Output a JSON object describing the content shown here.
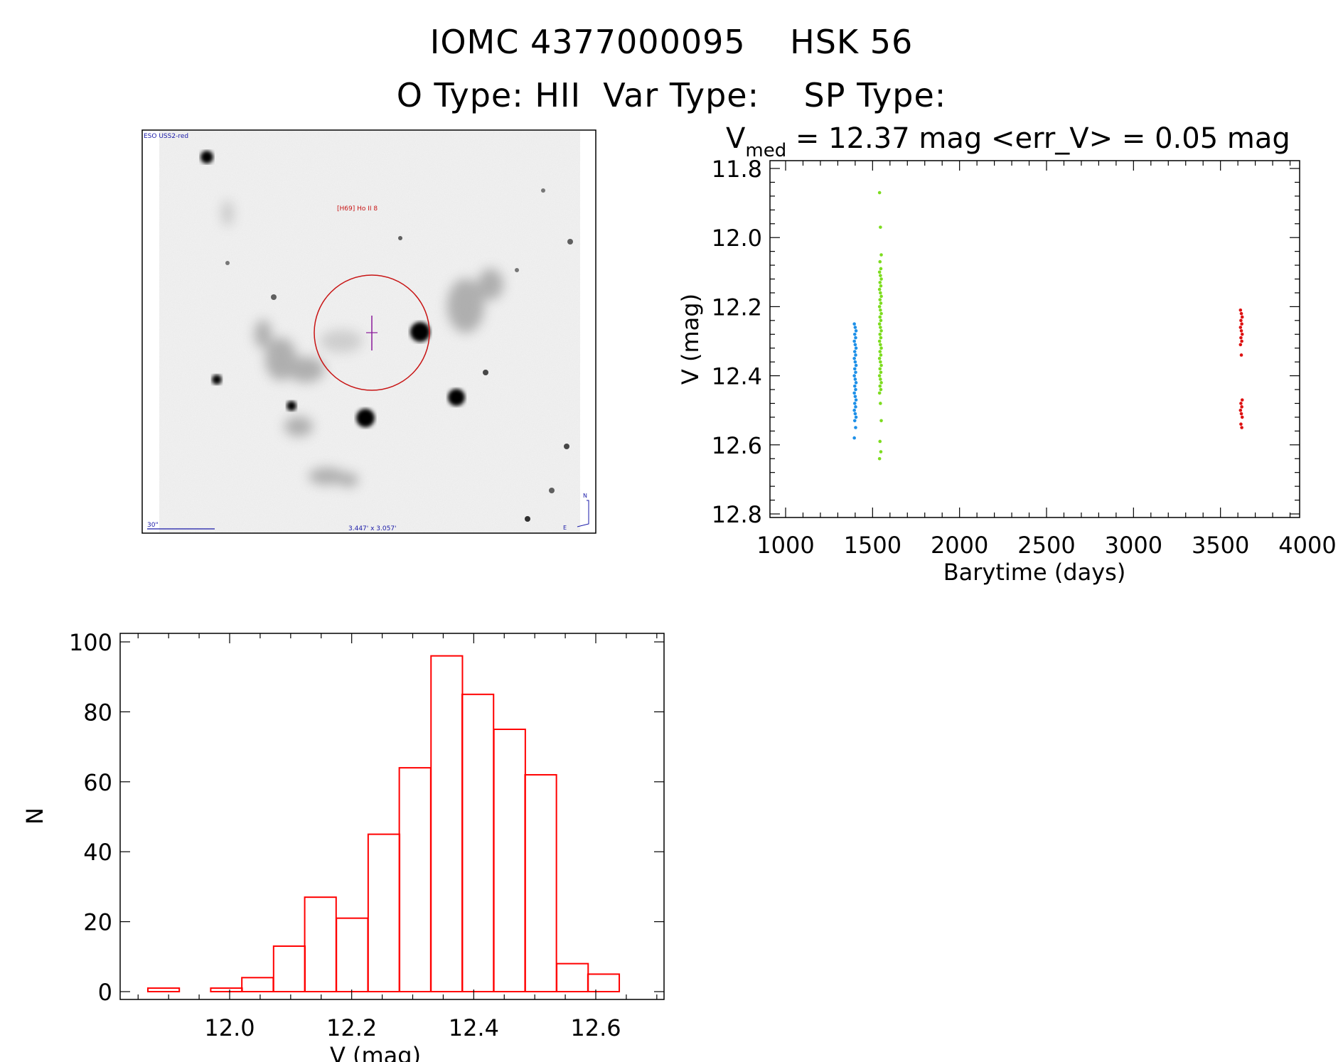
{
  "header": {
    "line1": "IOMC 4377000095    HSK 56",
    "line2": "O Type: HII  Var Type:    SP Type:"
  },
  "finder": {
    "survey_label": "ESO USS2-red",
    "object_label": "[H69] Ho II 8",
    "scale_label": "30\"",
    "size_label": "3.447' x 3.057'",
    "compass_north": "N",
    "compass_east": "E"
  },
  "chart_data": [
    {
      "type": "scatter",
      "title_prefix": "V",
      "title_subscript": "med",
      "title_rest": " = 12.37 mag <err_V> = 0.05 mag",
      "xlabel": "Barytime (days)",
      "ylabel": "V (mag)",
      "xlim": [
        1000,
        4000
      ],
      "ylim": [
        12.8,
        11.8
      ],
      "y_inverted": true,
      "xticks": [
        1000,
        1500,
        2000,
        2500,
        3000,
        3500,
        4000
      ],
      "yticks": [
        11.8,
        12.0,
        12.2,
        12.4,
        12.6,
        12.8
      ],
      "xtick_labels": [
        "1000",
        "1500",
        "2000",
        "2500",
        "3000",
        "3500",
        "4000"
      ],
      "ytick_labels": [
        "11.8",
        "12.0",
        "12.2",
        "12.4",
        "12.6",
        "12.8"
      ],
      "grid": false,
      "series": [
        {
          "color": "#1e90e8",
          "x": 1400,
          "y_range": [
            12.25,
            12.58
          ],
          "y": [
            12.25,
            12.26,
            12.27,
            12.28,
            12.29,
            12.3,
            12.31,
            12.32,
            12.33,
            12.34,
            12.35,
            12.36,
            12.37,
            12.38,
            12.39,
            12.4,
            12.41,
            12.42,
            12.43,
            12.44,
            12.45,
            12.46,
            12.47,
            12.48,
            12.49,
            12.5,
            12.51,
            12.52,
            12.53,
            12.55,
            12.58
          ]
        },
        {
          "color": "#7ddc1f",
          "x": 1545,
          "y_range": [
            11.87,
            12.64
          ],
          "y": [
            11.87,
            11.97,
            12.05,
            12.07,
            12.09,
            12.1,
            12.11,
            12.12,
            12.13,
            12.14,
            12.15,
            12.16,
            12.17,
            12.18,
            12.19,
            12.2,
            12.21,
            12.22,
            12.23,
            12.24,
            12.25,
            12.26,
            12.27,
            12.28,
            12.29,
            12.3,
            12.31,
            12.32,
            12.33,
            12.34,
            12.35,
            12.36,
            12.37,
            12.38,
            12.39,
            12.4,
            12.41,
            12.42,
            12.43,
            12.44,
            12.45,
            12.48,
            12.53,
            12.59,
            12.62,
            12.64
          ]
        },
        {
          "color": "#dd1111",
          "x": 3620,
          "y_range": [
            12.21,
            12.55
          ],
          "y": [
            12.21,
            12.22,
            12.23,
            12.24,
            12.25,
            12.26,
            12.27,
            12.28,
            12.29,
            12.3,
            12.31,
            12.34,
            12.47,
            12.48,
            12.49,
            12.5,
            12.51,
            12.52,
            12.54,
            12.55
          ]
        }
      ]
    },
    {
      "type": "bar",
      "subtype": "histogram",
      "xlabel": "V (mag)",
      "ylabel": "N",
      "xlim": [
        11.81,
        12.74
      ],
      "ylim": [
        0,
        101
      ],
      "xticks": [
        12.0,
        12.2,
        12.4,
        12.6
      ],
      "yticks": [
        0,
        20,
        40,
        60,
        80,
        100
      ],
      "xtick_labels": [
        "12.0",
        "12.2",
        "12.4",
        "12.6"
      ],
      "ytick_labels": [
        "0",
        "20",
        "40",
        "60",
        "80",
        "100"
      ],
      "bar_color": "#ff0000",
      "bin_width": 0.0515,
      "bin_starts": [
        11.866,
        11.917,
        11.969,
        12.02,
        12.072,
        12.123,
        12.175,
        12.227,
        12.278,
        12.33,
        12.381,
        12.433,
        12.484,
        12.536,
        12.587
      ],
      "values": [
        1,
        0,
        1,
        4,
        13,
        27,
        21,
        45,
        64,
        96,
        85,
        75,
        62,
        8,
        5
      ]
    }
  ]
}
